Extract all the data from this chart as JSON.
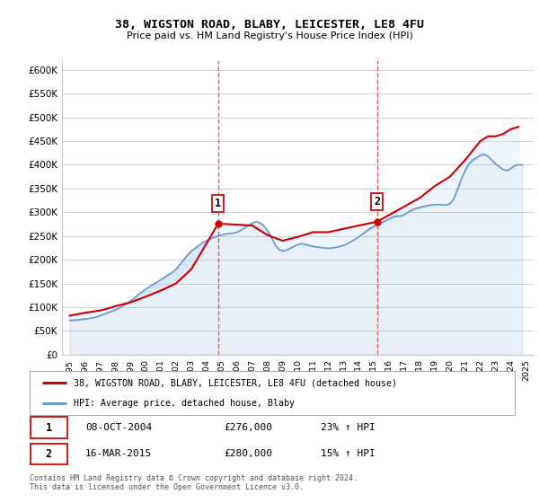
{
  "title": "38, WIGSTON ROAD, BLABY, LEICESTER, LE8 4FU",
  "subtitle": "Price paid vs. HM Land Registry's House Price Index (HPI)",
  "ylabel_ticks": [
    "£0",
    "£50K",
    "£100K",
    "£150K",
    "£200K",
    "£250K",
    "£300K",
    "£350K",
    "£400K",
    "£450K",
    "£500K",
    "£550K",
    "£600K"
  ],
  "ytick_values": [
    0,
    50000,
    100000,
    150000,
    200000,
    250000,
    300000,
    350000,
    400000,
    450000,
    500000,
    550000,
    600000
  ],
  "ylim": [
    0,
    620000
  ],
  "xlim_start": 1994.5,
  "xlim_end": 2025.5,
  "x_ticks": [
    1995,
    1996,
    1997,
    1998,
    1999,
    2000,
    2001,
    2002,
    2003,
    2004,
    2005,
    2006,
    2007,
    2008,
    2009,
    2010,
    2011,
    2012,
    2013,
    2014,
    2015,
    2016,
    2017,
    2018,
    2019,
    2020,
    2021,
    2022,
    2023,
    2024,
    2025
  ],
  "sale1_x": 2004.77,
  "sale1_y": 276000,
  "sale1_label": "1",
  "sale1_date": "08-OCT-2004",
  "sale1_price": "£276,000",
  "sale1_hpi": "23% ↑ HPI",
  "sale2_x": 2015.21,
  "sale2_y": 280000,
  "sale2_label": "2",
  "sale2_date": "16-MAR-2015",
  "sale2_price": "£280,000",
  "sale2_hpi": "15% ↑ HPI",
  "red_line_color": "#cc0000",
  "blue_line_color": "#6699cc",
  "fill_color": "#cce0ff",
  "grid_color": "#cccccc",
  "vline_color": "#ff4444",
  "legend_label_red": "38, WIGSTON ROAD, BLABY, LEICESTER, LE8 4FU (detached house)",
  "legend_label_blue": "HPI: Average price, detached house, Blaby",
  "footer_text": "Contains HM Land Registry data © Crown copyright and database right 2024.\nThis data is licensed under the Open Government Licence v3.0.",
  "hpi_series_x": [
    1995.0,
    1995.25,
    1995.5,
    1995.75,
    1996.0,
    1996.25,
    1996.5,
    1996.75,
    1997.0,
    1997.25,
    1997.5,
    1997.75,
    1998.0,
    1998.25,
    1998.5,
    1998.75,
    1999.0,
    1999.25,
    1999.5,
    1999.75,
    2000.0,
    2000.25,
    2000.5,
    2000.75,
    2001.0,
    2001.25,
    2001.5,
    2001.75,
    2002.0,
    2002.25,
    2002.5,
    2002.75,
    2003.0,
    2003.25,
    2003.5,
    2003.75,
    2004.0,
    2004.25,
    2004.5,
    2004.75,
    2005.0,
    2005.25,
    2005.5,
    2005.75,
    2006.0,
    2006.25,
    2006.5,
    2006.75,
    2007.0,
    2007.25,
    2007.5,
    2007.75,
    2008.0,
    2008.25,
    2008.5,
    2008.75,
    2009.0,
    2009.25,
    2009.5,
    2009.75,
    2010.0,
    2010.25,
    2010.5,
    2010.75,
    2011.0,
    2011.25,
    2011.5,
    2011.75,
    2012.0,
    2012.25,
    2012.5,
    2012.75,
    2013.0,
    2013.25,
    2013.5,
    2013.75,
    2014.0,
    2014.25,
    2014.5,
    2014.75,
    2015.0,
    2015.25,
    2015.5,
    2015.75,
    2016.0,
    2016.25,
    2016.5,
    2016.75,
    2017.0,
    2017.25,
    2017.5,
    2017.75,
    2018.0,
    2018.25,
    2018.5,
    2018.75,
    2019.0,
    2019.25,
    2019.5,
    2019.75,
    2020.0,
    2020.25,
    2020.5,
    2020.75,
    2021.0,
    2021.25,
    2021.5,
    2021.75,
    2022.0,
    2022.25,
    2022.5,
    2022.75,
    2023.0,
    2023.25,
    2023.5,
    2023.75,
    2024.0,
    2024.25,
    2024.5,
    2024.75
  ],
  "hpi_series_y": [
    72000,
    72500,
    73000,
    74000,
    75000,
    76000,
    77500,
    79000,
    82000,
    85000,
    88000,
    91000,
    94000,
    98000,
    103000,
    108000,
    113000,
    119000,
    126000,
    132000,
    138000,
    143000,
    148000,
    153000,
    158000,
    163000,
    168000,
    173000,
    180000,
    190000,
    200000,
    210000,
    218000,
    224000,
    230000,
    236000,
    240000,
    244000,
    247000,
    250000,
    252000,
    254000,
    255000,
    256000,
    258000,
    262000,
    267000,
    272000,
    277000,
    280000,
    278000,
    272000,
    262000,
    248000,
    232000,
    222000,
    218000,
    220000,
    224000,
    228000,
    232000,
    234000,
    232000,
    230000,
    228000,
    227000,
    226000,
    225000,
    224000,
    225000,
    226000,
    228000,
    230000,
    234000,
    238000,
    243000,
    248000,
    254000,
    260000,
    266000,
    270000,
    274000,
    278000,
    282000,
    286000,
    290000,
    292000,
    292000,
    295000,
    300000,
    305000,
    308000,
    310000,
    312000,
    314000,
    315000,
    316000,
    316000,
    316000,
    315000,
    318000,
    328000,
    348000,
    370000,
    388000,
    402000,
    410000,
    415000,
    420000,
    422000,
    418000,
    410000,
    402000,
    396000,
    390000,
    388000,
    392000,
    398000,
    400000,
    400000
  ],
  "price_series_x": [
    1995.0,
    1995.5,
    1996.0,
    1997.0,
    1997.5,
    1998.0,
    1999.0,
    2000.0,
    2001.0,
    2002.0,
    2003.0,
    2004.77,
    2007.0,
    2008.0,
    2009.0,
    2010.0,
    2011.0,
    2012.0,
    2013.0,
    2014.0,
    2015.21,
    2018.0,
    2019.0,
    2020.0,
    2021.0,
    2021.5,
    2022.0,
    2022.5,
    2023.0,
    2023.5,
    2024.0,
    2024.5
  ],
  "price_series_y": [
    82000,
    85000,
    88000,
    93000,
    97000,
    102000,
    110000,
    122000,
    135000,
    150000,
    180000,
    276000,
    272000,
    252000,
    240000,
    248000,
    258000,
    258000,
    265000,
    272000,
    280000,
    330000,
    355000,
    375000,
    410000,
    430000,
    450000,
    460000,
    460000,
    465000,
    475000,
    480000
  ]
}
